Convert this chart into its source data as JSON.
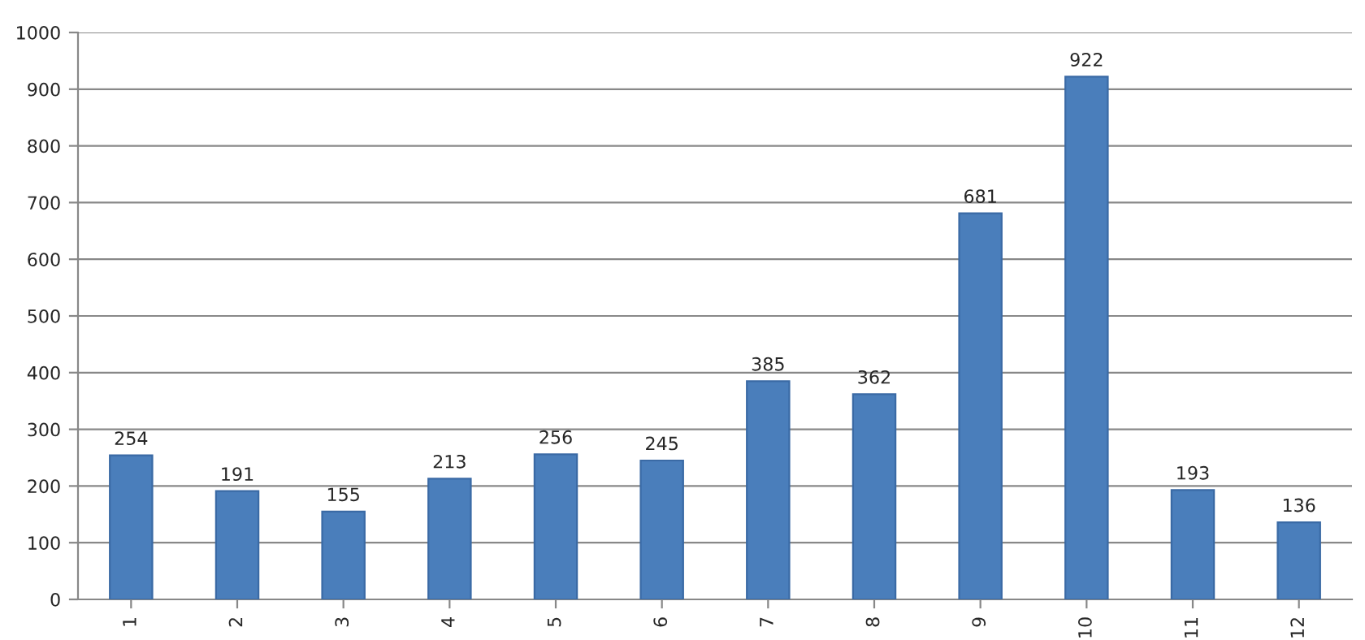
{
  "chart_data": {
    "type": "bar",
    "categories": [
      "1",
      "2",
      "3",
      "4",
      "5",
      "6",
      "7",
      "8",
      "9",
      "10",
      "11",
      "12"
    ],
    "values": [
      254,
      191,
      155,
      213,
      256,
      245,
      385,
      362,
      681,
      922,
      193,
      136
    ],
    "color": "#4a7ebb",
    "ylim": [
      0,
      1000
    ],
    "yticks": [
      0,
      100,
      200,
      300,
      400,
      500,
      600,
      700,
      800,
      900,
      1000
    ],
    "grid": "y",
    "data_labels": true
  }
}
